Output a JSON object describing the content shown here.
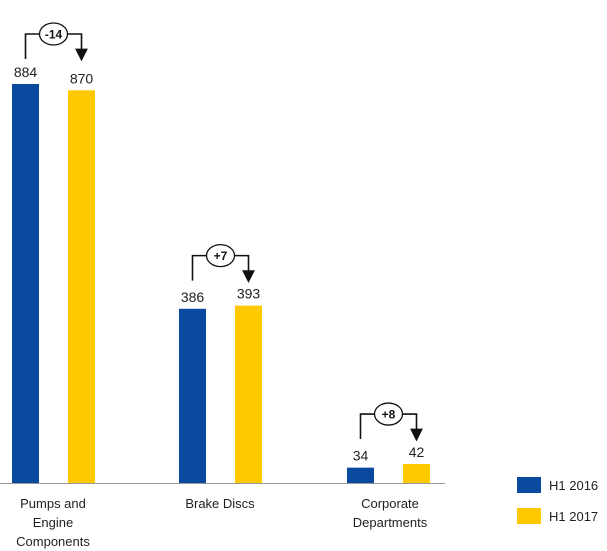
{
  "chart_data": {
    "type": "bar",
    "categories": [
      [
        "Pumps and",
        "Engine",
        "Components"
      ],
      [
        "Brake Discs"
      ],
      [
        "Corporate",
        "Departments"
      ]
    ],
    "series": [
      {
        "name": "H1 2016",
        "color": "#0a4a9e",
        "values": [
          884,
          386,
          34
        ]
      },
      {
        "name": "H1 2017",
        "color": "#ffc900",
        "values": [
          870,
          393,
          42
        ]
      }
    ],
    "data_labels": [
      [
        "884",
        "386",
        "34"
      ],
      [
        "870",
        "393",
        "42"
      ]
    ],
    "deltas": [
      "-14",
      "+7",
      "+8"
    ],
    "title": "",
    "xlabel": "",
    "ylabel": "",
    "ylim": [
      0,
      884
    ],
    "grid": false,
    "legend_position": "bottom-right"
  }
}
